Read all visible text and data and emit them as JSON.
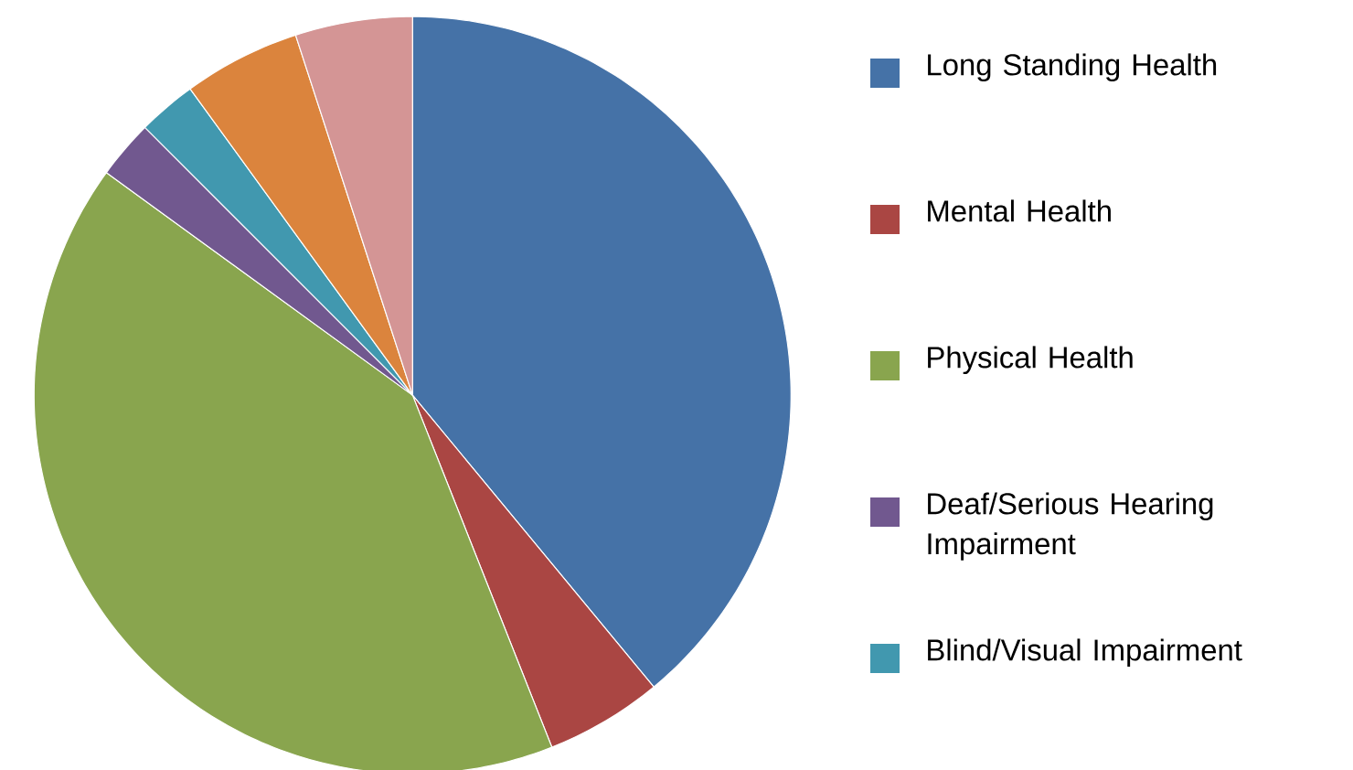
{
  "chart_data": {
    "type": "pie",
    "categories": [
      "Long Standing Health",
      "Mental Health",
      "Physical Health",
      "Deaf/Serious Hearing Impairment",
      "Blind/Visual Impairment",
      null,
      null
    ],
    "values": [
      39,
      5,
      41,
      2.5,
      2.5,
      5,
      5
    ],
    "colors": [
      "#4572a7",
      "#aa4643",
      "#89a54e",
      "#71588f",
      "#4198af",
      "#db843d",
      "#d49595"
    ],
    "legend": "right"
  }
}
